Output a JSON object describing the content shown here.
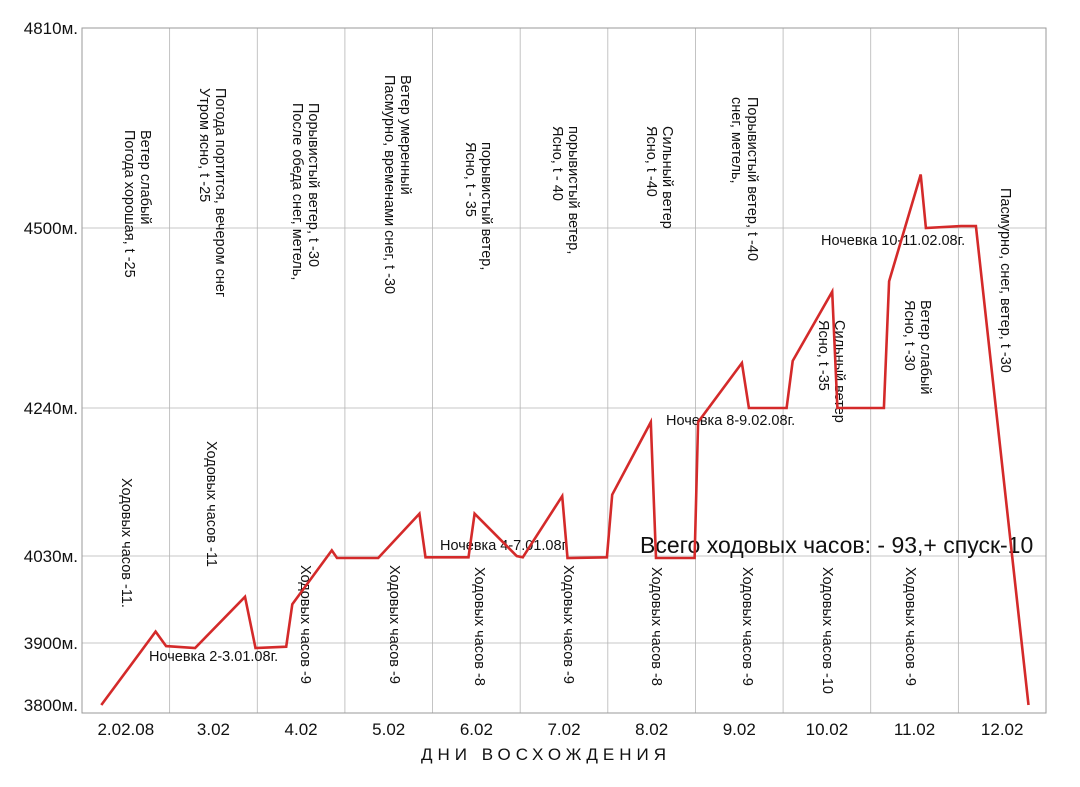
{
  "chart_data": {
    "type": "line",
    "xlabel": "ДНИ ВОСХОЖДЕНИЯ",
    "ylabel": "",
    "ylim": [
      3800,
      4810
    ],
    "grid": true,
    "y_ticks": [
      {
        "value": 4810,
        "label": "4810м."
      },
      {
        "value": 4500,
        "label": "4500м."
      },
      {
        "value": 4240,
        "label": "4240м."
      },
      {
        "value": 4030,
        "label": "4030м."
      },
      {
        "value": 3900,
        "label": "3900м."
      },
      {
        "value": 3800,
        "label": "3800м."
      }
    ],
    "x_ticks": [
      "2.02.08",
      "3.02",
      "4.02",
      "5.02",
      "6.02",
      "7.02",
      "8.02",
      "9.02",
      "10.02",
      "11.02",
      "12.02"
    ],
    "series": [
      {
        "color": "#d42a2a",
        "x": [
          0.22,
          0.84,
          0.96,
          1.29,
          1.86,
          1.98,
          2.33,
          2.4,
          2.85,
          2.91,
          3.38,
          3.85,
          3.92,
          4.41,
          4.48,
          4.96,
          5.03,
          5.48,
          5.54,
          5.99,
          6.05,
          6.49,
          6.55,
          6.99,
          7.03,
          7.53,
          7.61,
          8.04,
          8.11,
          8.56,
          8.62,
          9.15,
          9.21,
          9.57,
          9.63,
          10.03,
          10.2,
          10.8
        ],
        "y": [
          3800,
          3917,
          3895,
          3892,
          3969,
          3892,
          3894,
          3958,
          4038,
          4027,
          4027,
          4090,
          4028,
          4028,
          4090,
          4030,
          4028,
          4115,
          4027,
          4028,
          4117,
          4220,
          4027,
          4027,
          4220,
          4305,
          4240,
          4240,
          4308,
          4408,
          4240,
          4240,
          4423,
          4583,
          4500,
          4503,
          4503,
          3800
        ]
      }
    ],
    "annotations": {
      "weather": [
        {
          "lines": [
            "Погода хорошая, t -25",
            "Ветер слабый"
          ]
        },
        {
          "lines": [
            "Утром ясно, t -25",
            "Погода портится, вечером снег"
          ]
        },
        {
          "lines": [
            "После обеда снег,  метель,",
            "Порывистый ветер, t -30"
          ]
        },
        {
          "lines": [
            "Пасмурно, временами снег, t -30",
            "Ветер умеренный"
          ]
        },
        {
          "lines": [
            "Ясно, t - 35",
            "порывистый ветер,"
          ]
        },
        {
          "lines": [
            "Ясно, t - 40",
            "порывистый ветер,"
          ]
        },
        {
          "lines": [
            "Ясно, t -40",
            "Сильный ветер"
          ]
        },
        {
          "lines": [
            "снег,  метель,",
            "Порывистый ветер, t -40"
          ]
        },
        {
          "lines": [
            "Ясно, t -35",
            "Сильный ветер"
          ]
        },
        {
          "lines": [
            "Ясно, t -30",
            "Ветер слабый"
          ]
        },
        {
          "lines": [
            "Пасмурно, снег, ветер, t -30"
          ]
        }
      ],
      "hours": [
        "Ходовых часов -11.",
        "Ходовых часов -11",
        "Ходовых часов -9",
        "Ходовых часов -9",
        "Ходовых часов -8",
        "Ходовых часов -9",
        "Ходовых часов -8",
        "Ходовых часов -9",
        "Ходовых часов -10",
        "Ходовых часов -9"
      ],
      "camps": [
        "Ночевка  2-3.01.08г.",
        "Ночевка  4-7.01.08г.",
        "Ночевка  8-9.02.08г.",
        "Ночевка  10-11.02.08г."
      ],
      "total": "Всего ходовых часов:  - 93,+ спуск-10"
    }
  }
}
